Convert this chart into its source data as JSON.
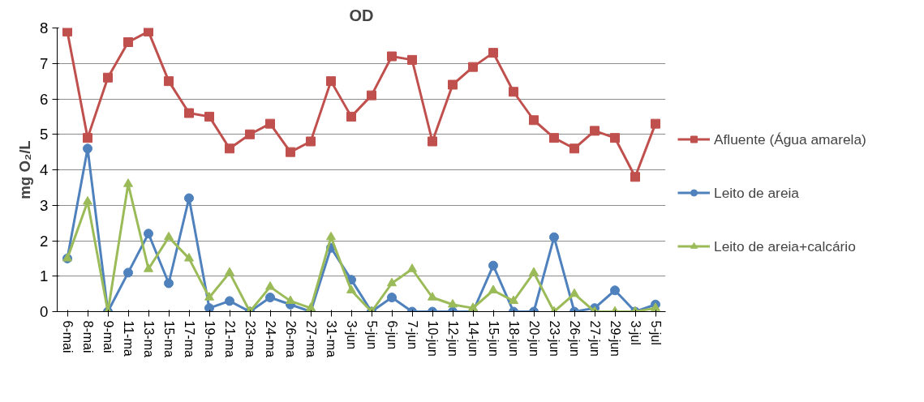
{
  "chart_data": {
    "type": "line",
    "title": "OD",
    "ylabel": "mg O₂/L",
    "categories": [
      "6-mai",
      "8-mai",
      "9-mai",
      "11-ma",
      "13-ma",
      "15-ma",
      "17-ma",
      "19-ma",
      "21-ma",
      "23-ma",
      "24-ma",
      "26-ma",
      "27-ma",
      "31-ma",
      "3-jun",
      "5-jun",
      "6-jun",
      "7-jun",
      "10-jun",
      "12-jun",
      "14-jun",
      "15-jun",
      "18-jun",
      "20-jun",
      "23-jun",
      "26-jun",
      "27-jun",
      "29-jun",
      "3-jul",
      "5-jul"
    ],
    "series": [
      {
        "name": "Afluente (Água amarela)",
        "color": "#c0504d",
        "marker": "square",
        "values": [
          7.9,
          4.9,
          6.6,
          7.6,
          7.9,
          6.5,
          5.6,
          5.5,
          4.6,
          5.0,
          5.3,
          4.5,
          4.8,
          6.5,
          5.5,
          6.1,
          7.2,
          7.1,
          4.8,
          6.4,
          6.9,
          7.3,
          6.2,
          5.4,
          4.9,
          4.6,
          5.1,
          4.9,
          3.8,
          5.3
        ]
      },
      {
        "name": "Leito de areia",
        "color": "#4f81bd",
        "marker": "circle",
        "values": [
          1.5,
          4.6,
          0,
          1.1,
          2.2,
          0.8,
          3.2,
          0.1,
          0.3,
          0,
          0.4,
          0.2,
          0,
          1.8,
          0.9,
          0,
          0.4,
          0,
          0,
          0,
          0,
          1.3,
          0,
          0,
          2.1,
          0,
          0.1,
          0.6,
          0,
          0.2
        ]
      },
      {
        "name": "Leito de areia+calcário",
        "color": "#9bbb59",
        "marker": "triangle",
        "values": [
          1.5,
          3.1,
          0,
          3.6,
          1.2,
          2.1,
          1.5,
          0.4,
          1.1,
          0,
          0.7,
          0.3,
          0.1,
          2.1,
          0.6,
          0,
          0.8,
          1.2,
          0.4,
          0.2,
          0.1,
          0.6,
          0.3,
          1.1,
          0,
          0.5,
          0,
          0,
          0,
          0.1
        ]
      }
    ],
    "ylim": [
      0,
      8
    ],
    "yticks": [
      0,
      1,
      2,
      3,
      4,
      5,
      6,
      7,
      8
    ],
    "grid": "y",
    "legend": "right"
  }
}
